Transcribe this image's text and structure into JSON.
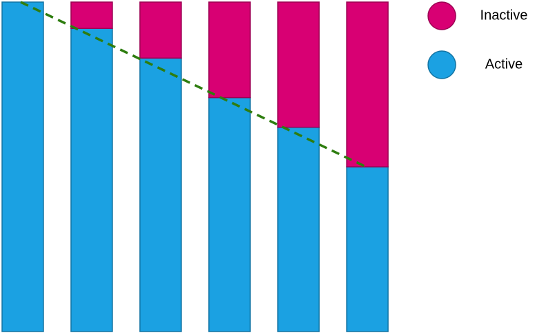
{
  "chart_data": {
    "type": "stacked_bar",
    "categories": [
      null,
      null,
      null,
      null,
      null,
      null
    ],
    "series": [
      {
        "name": "Active",
        "color": "#1ba1e2",
        "values": [
          100,
          92,
          83,
          71,
          62,
          50
        ]
      },
      {
        "name": "Inactive",
        "color": "#d80073",
        "values": [
          0,
          8,
          17,
          29,
          38,
          50
        ]
      }
    ],
    "ylim": [
      0,
      100
    ],
    "trend_line": {
      "series": 0,
      "color": "#2e7d0f",
      "dashed": true
    },
    "legend": "top-right"
  }
}
